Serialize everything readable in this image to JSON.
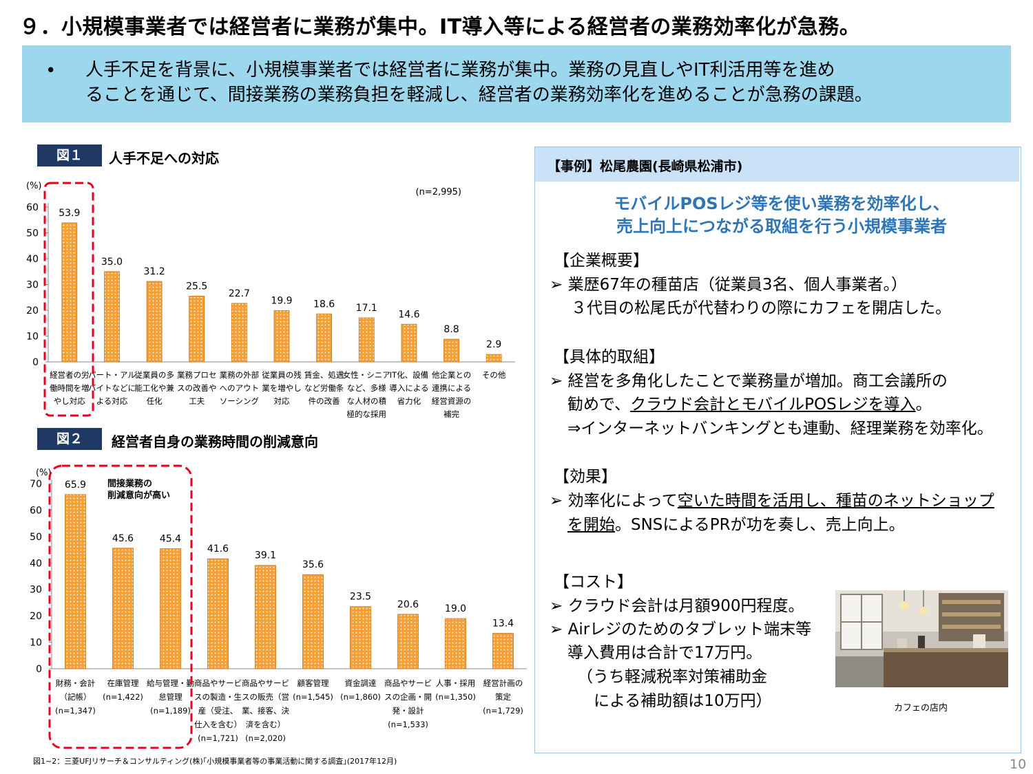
{
  "title": "９．小規模事業者では経営者に業務が集中。IT導入等による経営者の業務効率化が急務。",
  "summary": {
    "bullet": "•",
    "line1": "人手不足を背景に、小規模事業者では経営者に業務が集中。業務の見直しやIT利活用等を進め",
    "line2": "ることを通じて、間接業務の業務負担を軽減し、経営者の業務効率化を進めることが急務の課題。"
  },
  "fig1": {
    "tag": "図１",
    "title": "人手不足への対応"
  },
  "fig2": {
    "tag": "図２",
    "title": "経営者自身の業務時間の削減意向"
  },
  "chart_data": [
    {
      "type": "bar",
      "title": "人手不足への対応",
      "ylabel": "(%)",
      "note": "(n=2,995)",
      "ylim": [
        0,
        60
      ],
      "yticks": [
        0,
        10,
        20,
        30,
        40,
        50,
        60
      ],
      "bar_color": "#f4a037",
      "categories": [
        [
          "経営者の労",
          "働時間を増",
          "やし対応"
        ],
        [
          "パート・アル",
          "バイトなどに",
          "よる対応"
        ],
        [
          "従業員の多",
          "能工化や兼",
          "任化"
        ],
        [
          "業務プロセ",
          "スの改善や",
          "工夫"
        ],
        [
          "業務の外部",
          "へのアウト",
          "ソーシング"
        ],
        [
          "従業員の残",
          "業を増やし",
          "対応"
        ],
        [
          "賃金、処遇",
          "など労働条",
          "件の改善"
        ],
        [
          "女性・シニア",
          "など、多様",
          "な人材の積",
          "極的な採用"
        ],
        [
          "IT化、設備",
          "導入による",
          "省力化"
        ],
        [
          "他企業との",
          "連携による",
          "経営資源の",
          "補完"
        ],
        [
          "その他"
        ]
      ],
      "values": [
        53.9,
        35.0,
        31.2,
        25.5,
        22.7,
        19.9,
        18.6,
        17.1,
        14.6,
        8.8,
        2.9
      ],
      "value_labels": [
        "53.9",
        "35.0",
        "31.2",
        "25.5",
        "22.7",
        "19.9",
        "18.6",
        "17.1",
        "14.6",
        "8.8",
        "2.9"
      ]
    },
    {
      "type": "bar",
      "title": "経営者自身の業務時間の削減意向",
      "ylabel": "(%)",
      "annotation": [
        "間接業務の",
        "削減意向が高い"
      ],
      "ylim": [
        0,
        70
      ],
      "yticks": [
        0,
        10,
        20,
        30,
        40,
        50,
        60,
        70
      ],
      "bar_color": "#f4a037",
      "categories": [
        [
          "財務・会計",
          "（記帳）",
          "(n=1,347)"
        ],
        [
          "在庫管理",
          "(n=1,422)"
        ],
        [
          "給与管理・勤",
          "怠管理",
          "(n=1,189)"
        ],
        [
          "商品やサービ",
          "スの製造・生",
          "産（受注、",
          "仕入を含む）",
          "(n=1,721)"
        ],
        [
          "商品やサービ",
          "スの販売（営",
          "業、接客、決",
          "済を含む）",
          "(n=2,020)"
        ],
        [
          "顧客管理",
          "(n=1,545)"
        ],
        [
          "資金調達",
          "(n=1,860)"
        ],
        [
          "商品やサービ",
          "スの企画・開",
          "発・設計",
          "(n=1,533)"
        ],
        [
          "人事・採用",
          "(n=1,350)"
        ],
        [
          "経営計画の",
          "策定",
          "(n=1,729)"
        ]
      ],
      "values": [
        65.9,
        45.6,
        45.4,
        41.6,
        39.1,
        35.6,
        23.5,
        20.6,
        19.0,
        13.4
      ],
      "value_labels": [
        "65.9",
        "45.6",
        "45.4",
        "41.6",
        "39.1",
        "35.6",
        "23.5",
        "20.6",
        "19.0",
        "13.4"
      ]
    }
  ],
  "case": {
    "header": "【事例】松尾農園(長崎県松浦市)",
    "headline1": "モバイルPOSレジ等を使い業務を効率化し、",
    "headline2": "売上向上につながる取組を行う小規模事業者",
    "overview_heading": "【企業概要】",
    "overview_line1": "➢ 業歴67年の種苗店（従業員3名、個人事業者。）",
    "overview_line2": "３代目の松尾氏が代替わりの際にカフェを開店した。",
    "actions_heading": "【具体的取組】",
    "actions_line1": "➢ 経営を多角化したことで業務量が増加。商工会議所の",
    "actions_line2_a": "勧めで、",
    "actions_line2_u": "クラウド会計とモバイルPOSレジを導入",
    "actions_line2_b": "。",
    "actions_line3": "⇒インターネットバンキングとも連動、経理業務を効率化。",
    "effect_heading": "【効果】",
    "effect_line1_a": "➢ 効率化によって",
    "effect_line1_u": "空いた時間を活用し、種苗のネットショップ",
    "effect_line2_u": "を開始",
    "effect_line2_b": "。SNSによるPRが功を奏し、売上向上。",
    "cost_heading": "【コスト】",
    "cost_line1": "➢ クラウド会計は月額900円程度。",
    "cost_line2": "➢ Airレジのためのタブレット端末等",
    "cost_line3": "導入費用は合計で17万円。",
    "cost_line4": "（うち軽減税率対策補助金",
    "cost_line5": "による補助額は10万円）",
    "photo_caption": "カフェの店内"
  },
  "source": "図1~2：三菱UFJリサーチ＆コンサルティング(株)｢小規模事業者等の事業活動に関する調査｣(2017年12月)",
  "page_number": "10"
}
